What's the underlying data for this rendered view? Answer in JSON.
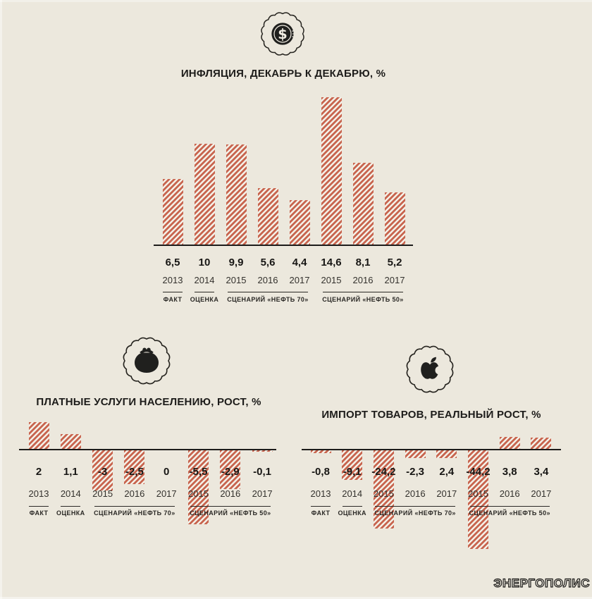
{
  "page": {
    "background_color": "#ece8dd",
    "accent_color": "#c8654f",
    "text_color": "#1d1c1a",
    "logo_text": "ЭНЕРГОПОЛИС"
  },
  "chart_data": [
    {
      "type": "bar",
      "title": "ИНФЛЯЦИЯ, ДЕКАБРЬ К ДЕКАБРЮ, %",
      "icon": "dollar-coin-icon",
      "unit": "%",
      "grid": false,
      "axis_style": "baseline-only, values printed under axis",
      "categories": [
        "2013",
        "2014",
        "2015",
        "2016",
        "2017",
        "2015",
        "2016",
        "2017"
      ],
      "values": [
        6.5,
        10,
        9.9,
        5.6,
        4.4,
        14.6,
        8.1,
        5.2
      ],
      "value_labels": [
        "6,5",
        "10",
        "9,9",
        "5,6",
        "4,4",
        "14,6",
        "8,1",
        "5,2"
      ],
      "bar_direction": [
        "up",
        "up",
        "up",
        "up",
        "up",
        "up",
        "up",
        "up"
      ],
      "groups": [
        {
          "label": "ФАКТ",
          "cols": [
            0,
            0
          ]
        },
        {
          "label": "ОЦЕНКА",
          "cols": [
            1,
            1
          ]
        },
        {
          "label": "СЦЕНАРИЙ «НЕФТЬ 70»",
          "cols": [
            2,
            4
          ]
        },
        {
          "label": "СЦЕНАРИЙ «НЕФТЬ 50»",
          "cols": [
            5,
            7
          ]
        }
      ]
    },
    {
      "type": "bar",
      "title": "ПЛАТНЫЕ УСЛУГИ НАСЕЛЕНИЮ, РОСТ, %",
      "icon": "coin-purse-icon",
      "unit": "%",
      "grid": false,
      "axis_style": "baseline-only, negative bars drop below axis behind labels",
      "categories": [
        "2013",
        "2014",
        "2015",
        "2016",
        "2017",
        "2015",
        "2016",
        "2017"
      ],
      "values": [
        2,
        1.1,
        -3,
        -2.5,
        0,
        -5.5,
        -2.9,
        -0.1
      ],
      "value_labels": [
        "2",
        "1,1",
        "-3",
        "-2,5",
        "0",
        "-5,5",
        "-2,9",
        "-0,1"
      ],
      "bar_direction": [
        "up",
        "up",
        "down",
        "down",
        "none",
        "down",
        "down",
        "down"
      ],
      "groups": [
        {
          "label": "ФАКТ",
          "cols": [
            0,
            0
          ]
        },
        {
          "label": "ОЦЕНКА",
          "cols": [
            1,
            1
          ]
        },
        {
          "label": "СЦЕНАРИЙ «НЕФТЬ 70»",
          "cols": [
            2,
            4
          ]
        },
        {
          "label": "СЦЕНАРИЙ «НЕФТЬ 50»",
          "cols": [
            5,
            7
          ]
        }
      ]
    },
    {
      "type": "bar",
      "title": "ИМПОРТ ТОВАРОВ, РЕАЛЬНЫЙ РОСТ, %",
      "icon": "apple-icon",
      "unit": "%",
      "grid": false,
      "axis_style": "baseline-only, long negative bars clipped; 2,4 bar drawn below axis in source",
      "categories": [
        "2013",
        "2014",
        "2015",
        "2016",
        "2017",
        "2015",
        "2016",
        "2017"
      ],
      "values": [
        -0.8,
        -9.1,
        -24.2,
        -2.3,
        2.4,
        -44.2,
        3.8,
        3.4
      ],
      "value_labels": [
        "-0,8",
        "-9,1",
        "-24,2",
        "-2,3",
        "2,4",
        "-44,2",
        "3,8",
        "3,4"
      ],
      "bar_direction": [
        "down",
        "down",
        "down",
        "down",
        "down",
        "down",
        "up",
        "up"
      ],
      "groups": [
        {
          "label": "ФАКТ",
          "cols": [
            0,
            0
          ]
        },
        {
          "label": "ОЦЕНКА",
          "cols": [
            1,
            1
          ]
        },
        {
          "label": "СЦЕНАРИЙ «НЕФТЬ 70»",
          "cols": [
            2,
            4
          ]
        },
        {
          "label": "СЦЕНАРИЙ «НЕФТЬ 50»",
          "cols": [
            5,
            7
          ]
        }
      ]
    }
  ]
}
